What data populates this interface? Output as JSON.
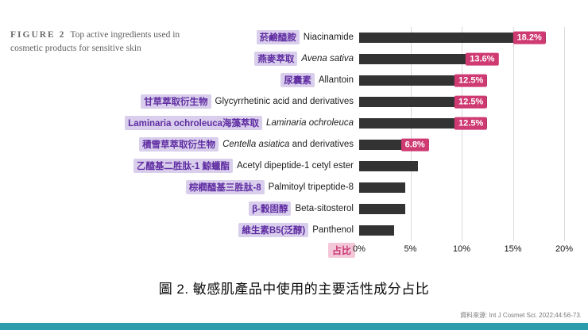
{
  "figure_legend": {
    "tag": "FIGURE 2",
    "text": "Top active ingredients used in cosmetic products for sensitive skin"
  },
  "caption": "圖 2. 敏感肌產品中使用的主要活性成分占比",
  "source": "資料來源: Int J Cosmet Sci. 2022;44:56-73.",
  "colors": {
    "bar": "#333333",
    "chip_bg": "#d9cfec",
    "chip_text": "#5f2ca2",
    "badge_bg": "#ce3a71",
    "badge_text": "#ffffff",
    "xlabel_bg": "#f4c7d8",
    "xlabel_text": "#c73570",
    "footer_strip": "#2b9cab"
  },
  "chart_data": {
    "type": "bar",
    "orientation": "horizontal",
    "title": "圖 2. 敏感肌產品中使用的主要活性成分占比",
    "xlabel": "占比",
    "xlim": [
      0,
      20
    ],
    "grid": true,
    "ticks": [
      "0%",
      "5%",
      "10%",
      "15%",
      "20%"
    ],
    "rows": [
      {
        "zh": "菸鹼醯胺",
        "en_pre": "Niacinamide",
        "value": 18.2,
        "badge": "18.2%"
      },
      {
        "zh": "燕麥萃取",
        "en_italic": "Avena sativa",
        "value": 13.6,
        "badge": "13.6%"
      },
      {
        "zh": "尿囊素",
        "en_pre": "Allantoin",
        "value": 12.5,
        "badge": "12.5%"
      },
      {
        "zh": "甘草萃取衍生物",
        "en_pre": "Glycyrrhetinic acid and derivatives",
        "value": 12.5,
        "badge": "12.5%"
      },
      {
        "zh": "Laminaria ochroleuca海藻萃取",
        "en_italic": "Laminaria ochroleuca",
        "value": 12.5,
        "badge": "12.5%"
      },
      {
        "zh": "積雪草萃取衍生物",
        "en_italic": "Centella asiatica",
        "en_post": " and derivatives",
        "value": 6.8,
        "badge": "6.8%"
      },
      {
        "zh": "乙醯基二胜肽-1 鯨蠟酯",
        "en_pre": "Acetyl dipeptide-1 cetyl ester",
        "value": 5.7,
        "badge": ""
      },
      {
        "zh": "棕櫚醯基三胜肽-8",
        "en_pre": "Palmitoyl tripeptide-8",
        "value": 4.5,
        "badge": ""
      },
      {
        "zh": "β-穀固醇",
        "en_pre": "Beta-sitosterol",
        "value": 4.5,
        "badge": ""
      },
      {
        "zh": "維生素B5(泛醇)",
        "en_pre": "Panthenol",
        "value": 3.4,
        "badge": ""
      }
    ]
  }
}
